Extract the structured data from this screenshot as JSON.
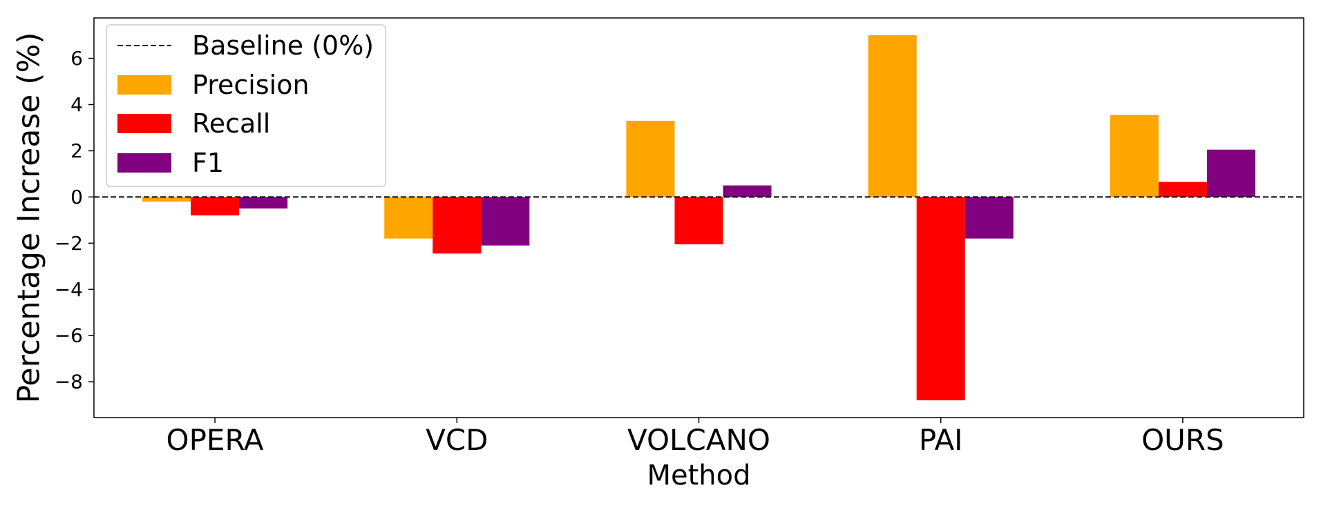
{
  "chart_data": {
    "type": "bar",
    "title": "",
    "xlabel": "Method",
    "ylabel": "Percentage Increase (%)",
    "categories": [
      "OPERA",
      "VCD",
      "VOLCANO",
      "PAI",
      "OURS"
    ],
    "series": [
      {
        "name": "Precision",
        "color": "#FFA500",
        "values": [
          -0.2,
          -1.8,
          3.3,
          7.0,
          3.55
        ]
      },
      {
        "name": "Recall",
        "color": "#FF0000",
        "values": [
          -0.8,
          -2.45,
          -2.05,
          -8.8,
          0.65
        ]
      },
      {
        "name": "F1",
        "color": "#800080",
        "values": [
          -0.5,
          -2.1,
          0.5,
          -1.8,
          2.05
        ]
      }
    ],
    "baseline": {
      "name": "Baseline (0%)",
      "value": 0,
      "style": "dashed",
      "color": "#000000"
    },
    "ylim": [
      -9.55,
      7.75
    ],
    "yticks": [
      6,
      4,
      2,
      0,
      -2,
      -4,
      -6,
      -8
    ],
    "ytick_labels": [
      "6",
      "4",
      "2",
      "0",
      "−2",
      "−4",
      "−6",
      "−8"
    ],
    "grid": false,
    "legend_position": "upper-left"
  }
}
